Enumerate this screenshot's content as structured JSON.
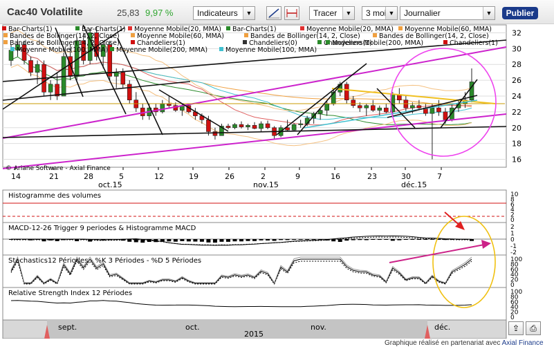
{
  "header": {
    "title": "Cac40 Volatilite",
    "price": "25,83",
    "change": "9,97 %",
    "indicators_label": "Indicateurs",
    "draw_label": "Tracer",
    "period_label": "3 mois",
    "interval_label": "Journalier",
    "publish_label": "Publier"
  },
  "footer": {
    "prefix": "Graphique réalisé en partenariat avec",
    "brand": "Axial Finance"
  },
  "colors": {
    "up": "#2a8a2a",
    "down": "#d01010",
    "magenta": "#cc22cc",
    "yellow": "#f0c020",
    "cyan": "#40c0d0",
    "black": "#111111",
    "circle": "#ee44ee",
    "orange_circle": "#f0c010",
    "arrow_red": "#e02020",
    "arrow_pink": "#cc2288"
  },
  "chart_data": [
    {
      "type": "candlestick",
      "title": "Cac40 Volatilite",
      "copyright": "© Ariane Software - Axial Finance",
      "legend": [
        {
          "label": "Bar-Charts(1)",
          "color": "#d01010"
        },
        {
          "label": "Bar-Charts(1)",
          "color": "#2a8a2a"
        },
        {
          "label": "Moyenne Mobile(20, MMA)",
          "color": "#e03030"
        },
        {
          "label": "Bar-Charts(1)",
          "color": "#2a8a2a"
        },
        {
          "label": "Moyenne Mobile(20, MMA)",
          "color": "#e03030"
        },
        {
          "label": "Moyenne Mobile(60, MMA)",
          "color": "#f0a040"
        },
        {
          "label": "Bandes de Bollinger(14, 2, Close)",
          "color": "#f0a040"
        },
        {
          "label": "Moyenne Mobile(60, MMA)",
          "color": "#f0a040"
        },
        {
          "label": "Bandes de Bollinger(14, 2, Close)",
          "color": "#f0a040"
        },
        {
          "label": "Bandes de Bollinger(14, 2, Close)",
          "color": "#f0a040"
        },
        {
          "label": "Bandes de Bollinger(14, 2, Close)",
          "color": "#f0a040"
        },
        {
          "label": "Chandeliers(1)",
          "color": "#d01010"
        },
        {
          "label": "Chandeliers(0)",
          "color": "#333333"
        },
        {
          "label": "Chandeliers(1)",
          "color": "#2a8a2a"
        },
        {
          "label": "Moyenne Mobile(200, MMA)",
          "color": "#2a8a2a"
        },
        {
          "label": "Chandeliers(1)",
          "color": "#d01010"
        },
        {
          "label": "Moyenne Mobile(100, MMA)",
          "color": "#40c0d0"
        },
        {
          "label": "Moyenne Mobile(200, MMA)",
          "color": "#2a8a2a"
        },
        {
          "label": "Moyenne Mobile(100, MMA)",
          "color": "#40c0d0"
        }
      ],
      "y_ticks": [
        16,
        18,
        20,
        22,
        24,
        26,
        28,
        30,
        32
      ],
      "ylim": [
        15,
        33
      ],
      "x_day_ticks": [
        "14",
        "21",
        "28",
        "5",
        "12",
        "19",
        "26",
        "2",
        "9",
        "16",
        "23",
        "30",
        "7"
      ],
      "x_month_labels": [
        "oct.15",
        "nov.15",
        "déc.15"
      ],
      "candles": [
        {
          "o": 28.5,
          "h": 30.5,
          "l": 27.8,
          "c": 29.8
        },
        {
          "o": 29.8,
          "h": 31.2,
          "l": 29.0,
          "c": 30.5
        },
        {
          "o": 30.5,
          "h": 31.0,
          "l": 28.0,
          "c": 28.5
        },
        {
          "o": 28.5,
          "h": 29.0,
          "l": 26.5,
          "c": 27.0
        },
        {
          "o": 27.0,
          "h": 28.5,
          "l": 25.5,
          "c": 28.0
        },
        {
          "o": 28.0,
          "h": 28.5,
          "l": 24.0,
          "c": 24.5
        },
        {
          "o": 24.5,
          "h": 26.0,
          "l": 23.5,
          "c": 25.5
        },
        {
          "o": 25.5,
          "h": 27.0,
          "l": 23.5,
          "c": 24.0
        },
        {
          "o": 24.0,
          "h": 29.5,
          "l": 24.0,
          "c": 29.0
        },
        {
          "o": 29.0,
          "h": 30.5,
          "l": 26.0,
          "c": 26.5
        },
        {
          "o": 26.5,
          "h": 31.5,
          "l": 26.0,
          "c": 31.0
        },
        {
          "o": 31.0,
          "h": 32.0,
          "l": 28.0,
          "c": 28.5
        },
        {
          "o": 28.5,
          "h": 32.5,
          "l": 28.0,
          "c": 32.0
        },
        {
          "o": 32.0,
          "h": 32.8,
          "l": 28.5,
          "c": 29.0
        },
        {
          "o": 29.0,
          "h": 31.0,
          "l": 27.5,
          "c": 30.5
        },
        {
          "o": 30.5,
          "h": 31.0,
          "l": 26.0,
          "c": 26.5
        },
        {
          "o": 26.5,
          "h": 27.5,
          "l": 25.0,
          "c": 27.0
        },
        {
          "o": 27.0,
          "h": 27.5,
          "l": 25.0,
          "c": 25.5
        },
        {
          "o": 25.5,
          "h": 26.0,
          "l": 23.0,
          "c": 23.5
        },
        {
          "o": 23.5,
          "h": 24.5,
          "l": 22.0,
          "c": 22.5
        },
        {
          "o": 22.5,
          "h": 23.0,
          "l": 21.0,
          "c": 21.5
        },
        {
          "o": 21.5,
          "h": 23.0,
          "l": 21.0,
          "c": 22.5
        },
        {
          "o": 22.5,
          "h": 23.0,
          "l": 21.5,
          "c": 22.0
        },
        {
          "o": 22.0,
          "h": 23.5,
          "l": 21.8,
          "c": 23.0
        },
        {
          "o": 23.0,
          "h": 24.0,
          "l": 22.5,
          "c": 22.8
        },
        {
          "o": 22.8,
          "h": 23.2,
          "l": 22.0,
          "c": 22.2
        },
        {
          "o": 22.2,
          "h": 23.0,
          "l": 21.5,
          "c": 22.8
        },
        {
          "o": 22.8,
          "h": 23.0,
          "l": 21.8,
          "c": 22.0
        },
        {
          "o": 22.0,
          "h": 22.5,
          "l": 21.0,
          "c": 21.5
        },
        {
          "o": 21.5,
          "h": 21.8,
          "l": 20.5,
          "c": 21.0
        },
        {
          "o": 21.0,
          "h": 21.5,
          "l": 19.0,
          "c": 19.5
        },
        {
          "o": 19.5,
          "h": 20.0,
          "l": 18.5,
          "c": 19.0
        },
        {
          "o": 19.0,
          "h": 20.5,
          "l": 19.0,
          "c": 20.2
        },
        {
          "o": 20.2,
          "h": 20.5,
          "l": 19.8,
          "c": 20.0
        },
        {
          "o": 20.0,
          "h": 20.6,
          "l": 19.8,
          "c": 20.4
        },
        {
          "o": 20.4,
          "h": 20.8,
          "l": 19.9,
          "c": 20.1
        },
        {
          "o": 20.1,
          "h": 20.5,
          "l": 19.7,
          "c": 20.3
        },
        {
          "o": 20.3,
          "h": 20.7,
          "l": 19.8,
          "c": 19.9
        },
        {
          "o": 19.9,
          "h": 20.8,
          "l": 19.5,
          "c": 20.5
        },
        {
          "o": 20.5,
          "h": 20.9,
          "l": 19.8,
          "c": 20.0
        },
        {
          "o": 20.0,
          "h": 20.2,
          "l": 18.5,
          "c": 19.0
        },
        {
          "o": 19.0,
          "h": 20.3,
          "l": 18.8,
          "c": 20.0
        },
        {
          "o": 20.0,
          "h": 21.0,
          "l": 19.5,
          "c": 19.7
        },
        {
          "o": 19.7,
          "h": 20.6,
          "l": 19.5,
          "c": 20.4
        },
        {
          "o": 20.4,
          "h": 21.0,
          "l": 20.0,
          "c": 20.5
        },
        {
          "o": 20.5,
          "h": 21.5,
          "l": 20.2,
          "c": 21.2
        },
        {
          "o": 21.2,
          "h": 22.0,
          "l": 20.5,
          "c": 21.8
        },
        {
          "o": 21.8,
          "h": 22.5,
          "l": 21.0,
          "c": 22.2
        },
        {
          "o": 22.2,
          "h": 23.5,
          "l": 21.5,
          "c": 23.0
        },
        {
          "o": 23.0,
          "h": 25.0,
          "l": 22.8,
          "c": 24.5
        },
        {
          "o": 24.5,
          "h": 25.8,
          "l": 24.0,
          "c": 25.5
        },
        {
          "o": 25.5,
          "h": 25.8,
          "l": 23.0,
          "c": 23.5
        },
        {
          "o": 23.5,
          "h": 24.0,
          "l": 22.5,
          "c": 22.8
        },
        {
          "o": 22.8,
          "h": 23.2,
          "l": 22.0,
          "c": 22.5
        },
        {
          "o": 22.5,
          "h": 23.0,
          "l": 21.5,
          "c": 22.8
        },
        {
          "o": 22.8,
          "h": 23.5,
          "l": 22.0,
          "c": 22.2
        },
        {
          "o": 22.2,
          "h": 22.8,
          "l": 21.5,
          "c": 22.5
        },
        {
          "o": 22.5,
          "h": 23.0,
          "l": 21.8,
          "c": 22.0
        },
        {
          "o": 22.0,
          "h": 24.5,
          "l": 21.5,
          "c": 24.2
        },
        {
          "o": 24.2,
          "h": 25.0,
          "l": 23.0,
          "c": 23.5
        },
        {
          "o": 23.5,
          "h": 24.0,
          "l": 22.0,
          "c": 22.5
        },
        {
          "o": 22.5,
          "h": 23.2,
          "l": 21.8,
          "c": 22.8
        },
        {
          "o": 22.8,
          "h": 23.5,
          "l": 22.2,
          "c": 22.5
        },
        {
          "o": 22.5,
          "h": 23.0,
          "l": 21.5,
          "c": 21.8
        },
        {
          "o": 21.8,
          "h": 23.0,
          "l": 16.0,
          "c": 22.5
        },
        {
          "o": 22.5,
          "h": 23.5,
          "l": 21.5,
          "c": 22.0
        },
        {
          "o": 22.0,
          "h": 22.5,
          "l": 20.5,
          "c": 21.0
        },
        {
          "o": 21.0,
          "h": 23.0,
          "l": 20.8,
          "c": 22.5
        },
        {
          "o": 22.5,
          "h": 23.5,
          "l": 22.0,
          "c": 23.0
        },
        {
          "o": 23.0,
          "h": 24.5,
          "l": 22.5,
          "c": 23.5
        },
        {
          "o": 23.5,
          "h": 27.5,
          "l": 23.2,
          "c": 25.8
        }
      ]
    },
    {
      "type": "bar",
      "title": "Histogramme des volumes",
      "y_ticks": [
        "10",
        "8",
        "6",
        "4",
        "2",
        "0"
      ]
    },
    {
      "type": "line",
      "title": "MACD-12-26   Trigger 9 periodes & Histogramme MACD",
      "y_ticks": [
        "2",
        "1",
        "0",
        "-1",
        "-2"
      ]
    },
    {
      "type": "line",
      "title": "Stochastics12 Périodes  -  %K 3 Périodes  -  %D 5 Périodes",
      "y_ticks": [
        "100",
        "80",
        "60",
        "40",
        "20",
        "0"
      ]
    },
    {
      "type": "line",
      "title": "Relative Strength Index 12 Périodes",
      "y_ticks": [
        "100",
        "80",
        "60",
        "40",
        "20",
        "0"
      ]
    },
    {
      "type": "navigator",
      "month_labels": [
        "sept.",
        "oct.",
        "nov.",
        "déc."
      ],
      "year_label": "2015"
    }
  ]
}
